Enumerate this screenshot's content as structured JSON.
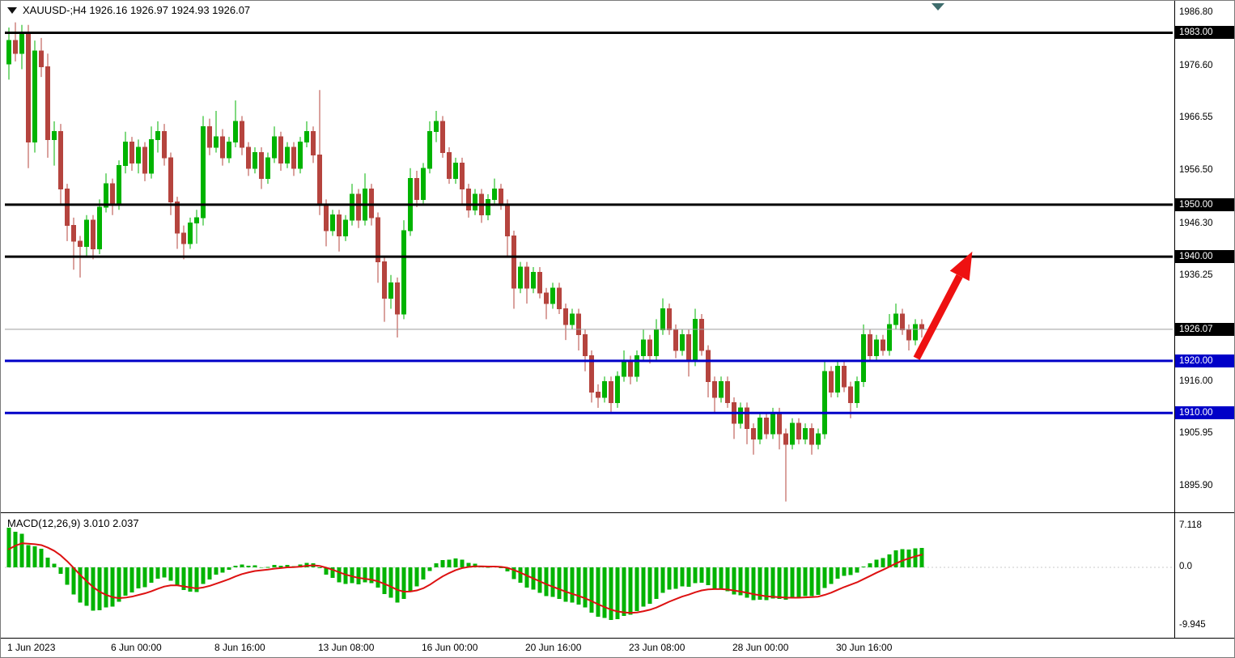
{
  "header": {
    "symbol": "XAUUSD-",
    "timeframe": "H4",
    "ohlc_text": "1926.16 1926.97 1924.93 1926.07",
    "full_text": "XAUUSD-;H4 1926.16 1926.97 1924.93 1926.07"
  },
  "colors": {
    "bull": "#00b300",
    "bear": "#b5443e",
    "level_black": "#000000",
    "level_blue": "#0000c8",
    "signal_line": "#dd1111",
    "arrow": "#ee1111",
    "current_price_line": "#9e9e9e"
  },
  "price_axis": {
    "plain_labels": [
      {
        "text": "1986.80",
        "price": 1986.8
      },
      {
        "text": "1976.60",
        "price": 1976.6
      },
      {
        "text": "1966.55",
        "price": 1966.55
      },
      {
        "text": "1956.50",
        "price": 1956.5
      },
      {
        "text": "1946.30",
        "price": 1946.3
      },
      {
        "text": "1936.25",
        "price": 1936.25
      },
      {
        "text": "1916.00",
        "price": 1916.0
      },
      {
        "text": "1905.95",
        "price": 1905.95
      },
      {
        "text": "1895.90",
        "price": 1895.9
      }
    ],
    "badges": [
      {
        "text": "1983.00",
        "price": 1983.0,
        "style": "black",
        "role": "level-badge"
      },
      {
        "text": "1950.00",
        "price": 1950.0,
        "style": "black",
        "role": "level-badge"
      },
      {
        "text": "1940.00",
        "price": 1940.0,
        "style": "black",
        "role": "level-badge"
      },
      {
        "text": "1926.07",
        "price": 1926.07,
        "style": "black",
        "role": "current-price-badge"
      },
      {
        "text": "1920.00",
        "price": 1920.0,
        "style": "blue",
        "role": "level-badge"
      },
      {
        "text": "1910.00",
        "price": 1910.0,
        "style": "blue",
        "role": "level-badge"
      }
    ]
  },
  "macd_panel": {
    "label": "MACD(12,26,9) 3.010 2.037",
    "macd_value": "3.010",
    "signal_value": "2.037",
    "axis_labels": [
      {
        "text": "7.118",
        "value": 7.118
      },
      {
        "text": "0.0",
        "value": 0.0
      },
      {
        "text": "-9.945",
        "value": -9.945
      }
    ]
  },
  "time_axis": {
    "labels": [
      "1 Jun 2023",
      "6 Jun 00:00",
      "8 Jun 16:00",
      "13 Jun 08:00",
      "16 Jun 00:00",
      "20 Jun 16:00",
      "23 Jun 08:00",
      "28 Jun 00:00",
      "30 Jun 16:00"
    ]
  },
  "chart_data": {
    "type": "candlestick+macd",
    "symbol": "XAUUSD-",
    "timeframe": "H4",
    "price_range_visible": [
      1890.9,
      1986.8
    ],
    "macd_range_visible": [
      -9.945,
      7.118
    ],
    "horizontal_levels": [
      {
        "price": 1983.0,
        "color": "black"
      },
      {
        "price": 1950.0,
        "color": "black"
      },
      {
        "price": 1940.0,
        "color": "black"
      },
      {
        "price": 1920.0,
        "color": "blue"
      },
      {
        "price": 1910.0,
        "color": "blue"
      }
    ],
    "current_price": 1926.07,
    "macd_settings": {
      "fast": 12,
      "slow": 26,
      "signal": 9
    },
    "time_tick_step_bars": 16,
    "arrow_annotation": {
      "shape": "up-arrow",
      "color": "#ee1111",
      "from": {
        "bar": 140.2,
        "price": 1920.5
      },
      "to": {
        "bar": 148.8,
        "price": 1941.0
      }
    },
    "candles": [
      [
        1977.0,
        1984.0,
        1974.0,
        1981.5
      ],
      [
        1981.5,
        1985.0,
        1977.5,
        1979.0
      ],
      [
        1979.0,
        1984.5,
        1976.0,
        1983.0
      ],
      [
        1983.0,
        1984.5,
        1957.0,
        1962.0
      ],
      [
        1962.0,
        1981.5,
        1960.0,
        1979.5
      ],
      [
        1979.5,
        1982.0,
        1974.5,
        1976.5
      ],
      [
        1976.5,
        1979.0,
        1959.0,
        1962.5
      ],
      [
        1962.5,
        1966.0,
        1957.5,
        1964.0
      ],
      [
        1964.0,
        1965.5,
        1950.0,
        1953.0
      ],
      [
        1953.0,
        1954.0,
        1943.0,
        1946.0
      ],
      [
        1946.0,
        1947.5,
        1937.5,
        1943.0
      ],
      [
        1943.0,
        1944.0,
        1936.0,
        1942.0
      ],
      [
        1942.0,
        1948.0,
        1940.0,
        1947.0
      ],
      [
        1947.0,
        1948.0,
        1939.5,
        1941.5
      ],
      [
        1941.5,
        1951.0,
        1940.5,
        1949.5
      ],
      [
        1949.5,
        1956.0,
        1948.5,
        1954.0
      ],
      [
        1954.0,
        1955.0,
        1948.0,
        1950.0
      ],
      [
        1950.0,
        1958.5,
        1949.0,
        1957.5
      ],
      [
        1957.5,
        1964.0,
        1956.0,
        1962.0
      ],
      [
        1962.0,
        1963.0,
        1956.5,
        1958.0
      ],
      [
        1958.0,
        1962.5,
        1956.0,
        1961.0
      ],
      [
        1961.0,
        1962.0,
        1954.5,
        1956.0
      ],
      [
        1956.0,
        1965.0,
        1955.0,
        1962.5
      ],
      [
        1962.5,
        1966.0,
        1960.0,
        1964.0
      ],
      [
        1964.0,
        1965.5,
        1957.5,
        1959.0
      ],
      [
        1959.0,
        1960.0,
        1948.0,
        1950.5
      ],
      [
        1950.5,
        1951.5,
        1941.5,
        1944.5
      ],
      [
        1944.5,
        1946.0,
        1939.5,
        1942.5
      ],
      [
        1942.5,
        1947.5,
        1941.5,
        1946.5
      ],
      [
        1946.5,
        1949.0,
        1942.5,
        1947.5
      ],
      [
        1947.5,
        1967.0,
        1946.0,
        1965.0
      ],
      [
        1965.0,
        1966.5,
        1959.5,
        1961.0
      ],
      [
        1961.0,
        1968.0,
        1960.0,
        1963.0
      ],
      [
        1963.0,
        1964.5,
        1957.5,
        1959.0
      ],
      [
        1959.0,
        1963.0,
        1958.0,
        1962.0
      ],
      [
        1962.0,
        1970.0,
        1961.0,
        1966.0
      ],
      [
        1966.0,
        1967.0,
        1959.5,
        1961.0
      ],
      [
        1961.0,
        1962.0,
        1955.5,
        1957.0
      ],
      [
        1957.0,
        1961.0,
        1956.0,
        1960.0
      ],
      [
        1960.0,
        1961.0,
        1953.0,
        1955.0
      ],
      [
        1955.0,
        1960.0,
        1954.0,
        1959.0
      ],
      [
        1959.0,
        1965.0,
        1958.0,
        1963.0
      ],
      [
        1963.0,
        1964.0,
        1956.5,
        1958.0
      ],
      [
        1958.0,
        1962.0,
        1957.0,
        1961.0
      ],
      [
        1961.0,
        1962.0,
        1955.5,
        1957.0
      ],
      [
        1957.0,
        1963.0,
        1956.0,
        1962.0
      ],
      [
        1962.0,
        1966.0,
        1961.0,
        1964.0
      ],
      [
        1964.0,
        1965.0,
        1958.0,
        1959.5
      ],
      [
        1959.5,
        1972.0,
        1948.0,
        1950.0
      ],
      [
        1950.0,
        1951.0,
        1942.0,
        1945.0
      ],
      [
        1945.0,
        1949.0,
        1944.0,
        1948.0
      ],
      [
        1948.0,
        1949.0,
        1941.0,
        1944.0
      ],
      [
        1944.0,
        1948.0,
        1943.0,
        1947.0
      ],
      [
        1947.0,
        1954.0,
        1946.0,
        1952.0
      ],
      [
        1952.0,
        1953.0,
        1945.5,
        1947.0
      ],
      [
        1947.0,
        1956.0,
        1946.0,
        1953.0
      ],
      [
        1953.0,
        1954.0,
        1946.0,
        1947.5
      ],
      [
        1947.5,
        1948.5,
        1935.0,
        1939.0
      ],
      [
        1939.0,
        1940.0,
        1927.5,
        1932.0
      ],
      [
        1932.0,
        1936.5,
        1930.0,
        1935.0
      ],
      [
        1935.0,
        1936.0,
        1924.5,
        1929.0
      ],
      [
        1929.0,
        1947.0,
        1928.0,
        1945.0
      ],
      [
        1945.0,
        1957.0,
        1944.0,
        1955.0
      ],
      [
        1955.0,
        1956.5,
        1949.5,
        1951.0
      ],
      [
        1951.0,
        1958.0,
        1950.0,
        1957.0
      ],
      [
        1957.0,
        1966.0,
        1956.0,
        1964.0
      ],
      [
        1964.0,
        1968.0,
        1962.0,
        1966.0
      ],
      [
        1966.0,
        1967.0,
        1959.0,
        1960.0
      ],
      [
        1960.0,
        1961.0,
        1954.0,
        1955.0
      ],
      [
        1955.0,
        1959.0,
        1954.0,
        1958.0
      ],
      [
        1958.0,
        1959.0,
        1950.0,
        1953.0
      ],
      [
        1953.0,
        1954.0,
        1947.5,
        1949.0
      ],
      [
        1949.0,
        1953.0,
        1948.0,
        1952.0
      ],
      [
        1952.0,
        1953.0,
        1946.5,
        1948.0
      ],
      [
        1948.0,
        1952.0,
        1947.0,
        1951.0
      ],
      [
        1951.0,
        1955.0,
        1950.0,
        1953.0
      ],
      [
        1953.0,
        1954.0,
        1949.0,
        1950.0
      ],
      [
        1950.0,
        1951.0,
        1940.0,
        1944.0
      ],
      [
        1944.0,
        1945.0,
        1930.0,
        1934.0
      ],
      [
        1934.0,
        1939.0,
        1933.0,
        1938.0
      ],
      [
        1938.0,
        1939.0,
        1931.0,
        1934.0
      ],
      [
        1934.0,
        1938.0,
        1933.0,
        1937.0
      ],
      [
        1937.0,
        1938.0,
        1932.0,
        1933.0
      ],
      [
        1933.0,
        1934.0,
        1928.0,
        1931.0
      ],
      [
        1931.0,
        1935.0,
        1930.0,
        1934.0
      ],
      [
        1934.0,
        1935.0,
        1929.0,
        1930.0
      ],
      [
        1930.0,
        1931.0,
        1924.0,
        1927.0
      ],
      [
        1927.0,
        1930.0,
        1926.0,
        1929.0
      ],
      [
        1929.0,
        1930.0,
        1922.0,
        1925.0
      ],
      [
        1925.0,
        1926.0,
        1918.0,
        1921.0
      ],
      [
        1921.0,
        1922.0,
        1912.0,
        1914.0
      ],
      [
        1914.0,
        1915.5,
        1911.0,
        1913.0
      ],
      [
        1913.0,
        1917.0,
        1912.0,
        1916.0
      ],
      [
        1916.0,
        1917.0,
        1910.0,
        1912.0
      ],
      [
        1912.0,
        1918.0,
        1911.0,
        1917.0
      ],
      [
        1917.0,
        1922.0,
        1916.0,
        1920.0
      ],
      [
        1920.0,
        1921.0,
        1915.5,
        1917.0
      ],
      [
        1917.0,
        1922.0,
        1916.0,
        1921.0
      ],
      [
        1921.0,
        1926.0,
        1920.0,
        1924.0
      ],
      [
        1924.0,
        1925.0,
        1919.5,
        1921.0
      ],
      [
        1921.0,
        1928.0,
        1920.0,
        1926.0
      ],
      [
        1926.0,
        1932.0,
        1925.0,
        1930.0
      ],
      [
        1930.0,
        1931.0,
        1925.0,
        1926.0
      ],
      [
        1926.0,
        1927.0,
        1920.5,
        1922.0
      ],
      [
        1922.0,
        1926.0,
        1921.0,
        1925.0
      ],
      [
        1925.0,
        1926.0,
        1917.0,
        1920.0
      ],
      [
        1920.0,
        1930.0,
        1919.0,
        1928.0
      ],
      [
        1928.0,
        1929.0,
        1921.0,
        1922.0
      ],
      [
        1922.0,
        1923.0,
        1913.0,
        1916.0
      ],
      [
        1916.0,
        1917.0,
        1910.0,
        1913.0
      ],
      [
        1913.0,
        1917.0,
        1912.0,
        1916.0
      ],
      [
        1916.0,
        1917.0,
        1911.0,
        1912.0
      ],
      [
        1912.0,
        1913.0,
        1905.0,
        1908.0
      ],
      [
        1908.0,
        1912.0,
        1907.0,
        1911.0
      ],
      [
        1911.0,
        1912.0,
        1904.0,
        1907.0
      ],
      [
        1907.0,
        1908.0,
        1902.0,
        1905.0
      ],
      [
        1905.0,
        1910.0,
        1904.0,
        1909.0
      ],
      [
        1909.0,
        1910.0,
        1905.0,
        1906.0
      ],
      [
        1906.0,
        1911.0,
        1905.0,
        1910.0
      ],
      [
        1910.0,
        1911.0,
        1903.0,
        1906.0
      ],
      [
        1906.0,
        1907.0,
        1893.0,
        1904.0
      ],
      [
        1904.0,
        1909.0,
        1903.0,
        1908.0
      ],
      [
        1908.0,
        1909.0,
        1904.0,
        1905.0
      ],
      [
        1905.0,
        1908.0,
        1904.0,
        1907.0
      ],
      [
        1907.0,
        1908.0,
        1902.0,
        1904.0
      ],
      [
        1904.0,
        1907.0,
        1903.0,
        1906.0
      ],
      [
        1906.0,
        1920.0,
        1905.0,
        1918.0
      ],
      [
        1918.0,
        1919.0,
        1913.0,
        1914.0
      ],
      [
        1914.0,
        1920.0,
        1913.0,
        1919.0
      ],
      [
        1919.0,
        1920.0,
        1914.0,
        1915.0
      ],
      [
        1915.0,
        1916.0,
        1909.0,
        1912.0
      ],
      [
        1912.0,
        1917.0,
        1911.0,
        1916.0
      ],
      [
        1916.0,
        1927.0,
        1915.0,
        1925.0
      ],
      [
        1925.0,
        1926.0,
        1920.0,
        1921.0
      ],
      [
        1921.0,
        1925.0,
        1920.0,
        1924.0
      ],
      [
        1924.0,
        1925.0,
        1921.0,
        1922.0
      ],
      [
        1922.0,
        1929.0,
        1921.0,
        1927.0
      ],
      [
        1927.0,
        1931.0,
        1926.0,
        1929.0
      ],
      [
        1929.0,
        1930.0,
        1925.0,
        1926.0
      ],
      [
        1926.0,
        1927.0,
        1922.0,
        1924.0
      ],
      [
        1924.0,
        1928.0,
        1923.0,
        1927.0
      ],
      [
        1927.0,
        1928.0,
        1924.5,
        1926.1
      ]
    ]
  }
}
